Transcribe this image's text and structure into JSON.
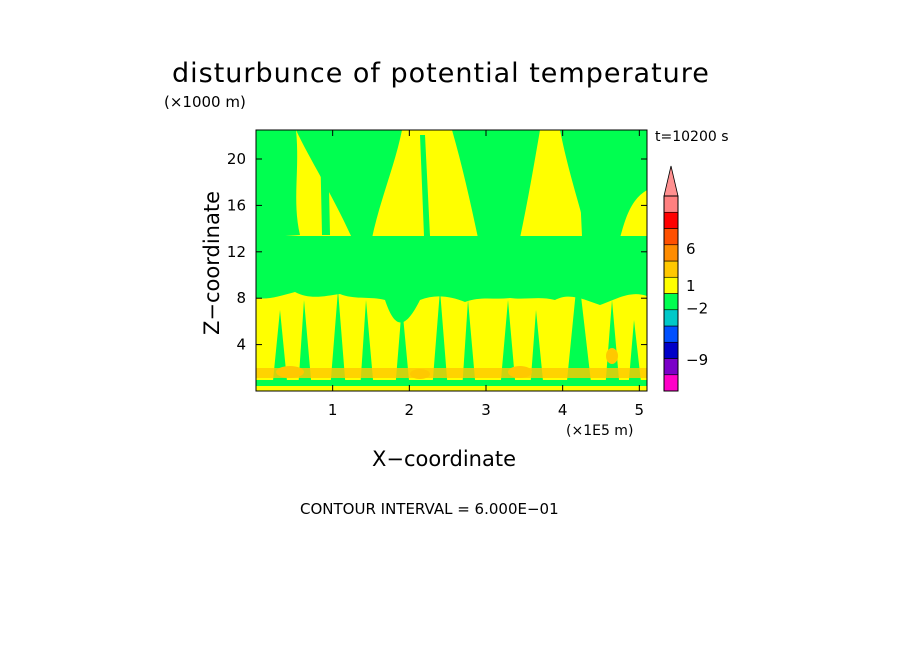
{
  "chart_data": {
    "type": "heatmap",
    "title": "disturbunce of potential temperature",
    "y_unit": "(×1000 m)",
    "x_unit": "(×1E5 m)",
    "xlabel": "X−coordinate",
    "ylabel": "Z−coordinate",
    "time_label": "t=10200 s",
    "footer": "CONTOUR INTERVAL = 6.000E−01",
    "xlim": [
      0,
      5.1
    ],
    "ylim": [
      0,
      22.5
    ],
    "x_ticks": [
      1,
      2,
      3,
      4,
      5
    ],
    "y_ticks": [
      4,
      8,
      12,
      16,
      20
    ],
    "colorbar": {
      "labels": [
        {
          "value": 6,
          "text": "6"
        },
        {
          "value": 1,
          "text": "1"
        },
        {
          "value": -2,
          "text": "−2"
        },
        {
          "value": -9,
          "text": "−9"
        }
      ],
      "bands": [
        {
          "color": "#ff00c8"
        },
        {
          "color": "#7b00c8"
        },
        {
          "color": "#0000c8"
        },
        {
          "color": "#0050ff"
        },
        {
          "color": "#00c8c8"
        },
        {
          "color": "#00ff50"
        },
        {
          "color": "#ffff00"
        },
        {
          "color": "#ffc800"
        },
        {
          "color": "#ff8c00"
        },
        {
          "color": "#ff5000"
        },
        {
          "color": "#ff0000"
        },
        {
          "color": "#ff8080"
        }
      ],
      "extend_color": "#ff9090"
    },
    "regions": [
      {
        "level": "yellow_upper",
        "color": "#ffff00",
        "x_range": [
          0,
          5.1
        ],
        "z_range": [
          14,
          22.5
        ]
      },
      {
        "level": "green_mid",
        "color": "#00ff50",
        "x_range": [
          0,
          5.1
        ],
        "z_range": [
          8.5,
          14
        ]
      },
      {
        "level": "yellow_lower",
        "color": "#ffff00",
        "x_range": [
          0,
          5.1
        ],
        "z_range": [
          0.5,
          8.5
        ]
      },
      {
        "level": "orange_near_surface",
        "color": "#ffc800",
        "x_range": [
          0,
          5.1
        ],
        "z_range": [
          0.3,
          2.2
        ]
      }
    ]
  }
}
